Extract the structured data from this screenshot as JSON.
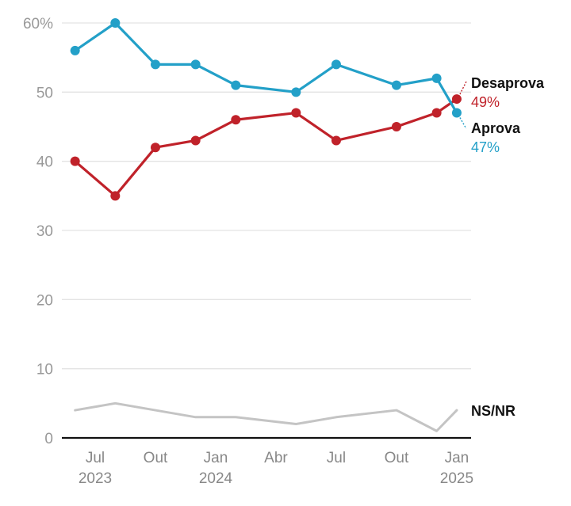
{
  "chart_data": {
    "type": "line",
    "title": "",
    "xlabel": "",
    "ylabel": "",
    "ylim": [
      0,
      60
    ],
    "y_ticks": [
      {
        "value": 0,
        "label": "0"
      },
      {
        "value": 10,
        "label": "10"
      },
      {
        "value": 20,
        "label": "20"
      },
      {
        "value": 30,
        "label": "30"
      },
      {
        "value": 40,
        "label": "40"
      },
      {
        "value": 50,
        "label": "50"
      },
      {
        "value": 60,
        "label": "60%"
      }
    ],
    "grid": true,
    "x_unit": "months since Jan 2023",
    "x_ticks": [
      {
        "month": 6,
        "label": "Jul",
        "year": "2023"
      },
      {
        "month": 9,
        "label": "Out",
        "year": ""
      },
      {
        "month": 12,
        "label": "Jan",
        "year": "2024"
      },
      {
        "month": 15,
        "label": "Abr",
        "year": ""
      },
      {
        "month": 18,
        "label": "Jul",
        "year": ""
      },
      {
        "month": 21,
        "label": "Out",
        "year": ""
      },
      {
        "month": 24,
        "label": "Jan",
        "year": "2025"
      }
    ],
    "x": [
      5,
      7,
      9,
      11,
      13,
      16,
      18,
      21,
      23,
      24
    ],
    "series": [
      {
        "name": "Aprova",
        "color": "#23A0C8",
        "markers": true,
        "end_label": "47%",
        "values": [
          56,
          60,
          54,
          54,
          51,
          50,
          54,
          51,
          52,
          47
        ]
      },
      {
        "name": "Desaprova",
        "color": "#C0222A",
        "markers": true,
        "end_label": "49%",
        "values": [
          40,
          35,
          42,
          43,
          46,
          47,
          43,
          45,
          47,
          49
        ]
      },
      {
        "name": "NS/NR",
        "color": "#C4C4C4",
        "markers": false,
        "end_label": "",
        "values": [
          4,
          5,
          4,
          3,
          3,
          2,
          3,
          4,
          1,
          4
        ]
      }
    ],
    "legend": "direct-labels-right"
  }
}
